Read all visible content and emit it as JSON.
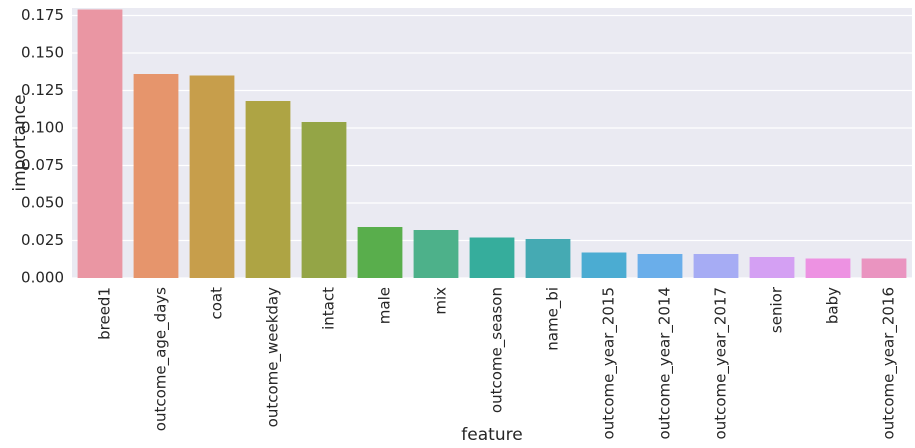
{
  "chart_data": {
    "type": "bar",
    "xlabel": "feature",
    "ylabel": "importance",
    "ylim": [
      0,
      0.18
    ],
    "yticks": [
      0.0,
      0.025,
      0.05,
      0.075,
      0.1,
      0.125,
      0.15,
      0.175
    ],
    "ytick_labels": [
      "0.000",
      "0.025",
      "0.050",
      "0.075",
      "0.100",
      "0.125",
      "0.150",
      "0.175"
    ],
    "grid": "horizontal",
    "categories": [
      "breed1",
      "outcome_age_days",
      "coat",
      "outcome_weekday",
      "intact",
      "male",
      "mix",
      "outcome_season",
      "name_bi",
      "outcome_year_2015",
      "outcome_year_2014",
      "outcome_year_2017",
      "senior",
      "baby",
      "outcome_year_2016"
    ],
    "values": [
      0.179,
      0.136,
      0.135,
      0.118,
      0.104,
      0.034,
      0.032,
      0.027,
      0.026,
      0.017,
      0.016,
      0.016,
      0.014,
      0.013,
      0.013
    ],
    "colors": [
      "#ea96a3",
      "#e6956c",
      "#c79e4b",
      "#aea444",
      "#94a546",
      "#59ae4c",
      "#4db18a",
      "#36ad9c",
      "#45aab3",
      "#4bacd2",
      "#6aaeea",
      "#a6acf4",
      "#d4a0f3",
      "#ed92e2",
      "#ea94c0"
    ],
    "background": "#eaeaf2",
    "grid_color": "#ffffff"
  }
}
